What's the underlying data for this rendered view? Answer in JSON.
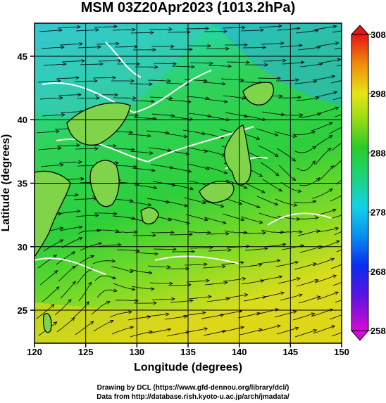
{
  "chart_data": {
    "type": "heatmap",
    "title": "MSM 03Z20Apr2023 (1013.2hPa)",
    "xlabel": "Longitude (degrees)",
    "ylabel": "Latitude  (degrees)",
    "xlim": [
      120,
      150
    ],
    "ylim": [
      22.4,
      47.6
    ],
    "x_ticks": [
      120,
      125,
      130,
      135,
      140,
      145,
      150
    ],
    "y_ticks": [
      25,
      30,
      35,
      40,
      45
    ],
    "grid": true,
    "overlays": [
      "streamlines",
      "contours"
    ],
    "colorbar": {
      "position": "right",
      "min": 258,
      "max": 308,
      "ticks": [
        258,
        268,
        278,
        288,
        298,
        308
      ],
      "extend": "both"
    }
  },
  "footer": {
    "line1": "Drawing by DCL (https://www.gfd-dennou.org/library/dcl/)",
    "line2": "Data from http://database.rish.kyoto-u.ac.jp/arch/jmadata/"
  }
}
